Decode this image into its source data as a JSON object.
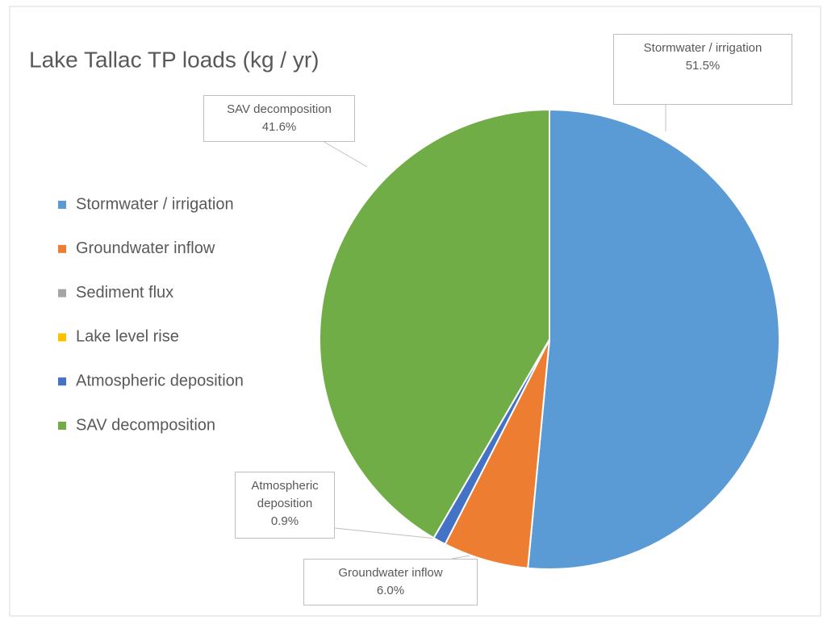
{
  "chart_data": {
    "type": "pie",
    "title": "Lake Tallac TP loads (kg / yr)",
    "categories": [
      "Stormwater / irrigation",
      "Groundwater inflow",
      "Sediment flux",
      "Lake level rise",
      "Atmospheric deposition",
      "SAV decomposition"
    ],
    "values": [
      51.5,
      6.0,
      0,
      0,
      0.9,
      41.6
    ],
    "value_labels": [
      "51.5%",
      "6.0%",
      null,
      null,
      "0.9%",
      "41.6%"
    ],
    "colors": [
      "#5b9bd5",
      "#ed7d31",
      "#a5a5a5",
      "#ffc000",
      "#4472c4",
      "#70ad47"
    ],
    "legend": "left"
  }
}
